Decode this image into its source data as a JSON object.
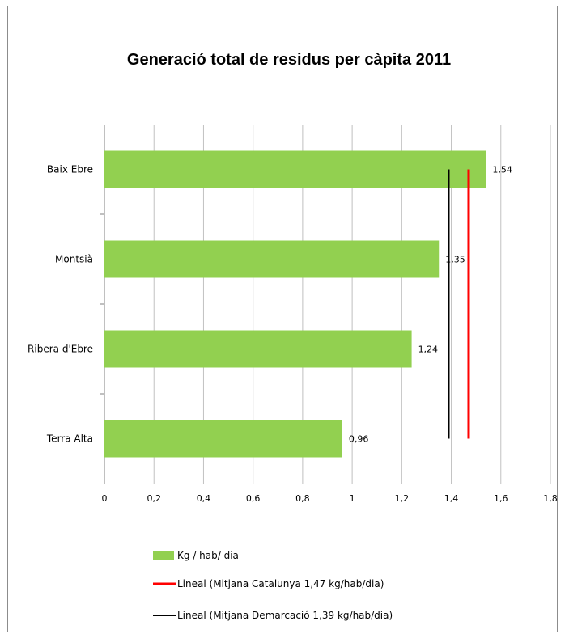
{
  "chart_data": {
    "type": "bar",
    "orientation": "horizontal",
    "title": "Generació total de residus per càpita 2011",
    "categories": [
      "Baix Ebre",
      "Montsià",
      "Ribera d'Ebre",
      "Terra Alta"
    ],
    "series": [
      {
        "name": "Kg / hab/ dia",
        "values": [
          1.54,
          1.35,
          1.24,
          0.96
        ],
        "labels": [
          "1,54",
          "1,35",
          "1,24",
          "0,96"
        ],
        "color": "#92d050"
      }
    ],
    "reference_lines": [
      {
        "name": "Lineal (Mitjana Catalunya 1,47 kg/hab/dia)",
        "value": 1.47,
        "color": "#ff0000"
      },
      {
        "name": "Lineal (Mitjana Demarcació 1,39 kg/hab/dia)",
        "value": 1.39,
        "color": "#000000"
      }
    ],
    "xlim": [
      0,
      1.8
    ],
    "xticks": [
      0,
      0.2,
      0.4,
      0.6,
      0.8,
      1,
      1.2,
      1.4,
      1.6,
      1.8
    ],
    "xtick_labels": [
      "0",
      "0,2",
      "0,4",
      "0,6",
      "0,8",
      "1",
      "1,2",
      "1,4",
      "1,6",
      "1,8"
    ],
    "grid": "vertical",
    "legend_position": "bottom"
  }
}
